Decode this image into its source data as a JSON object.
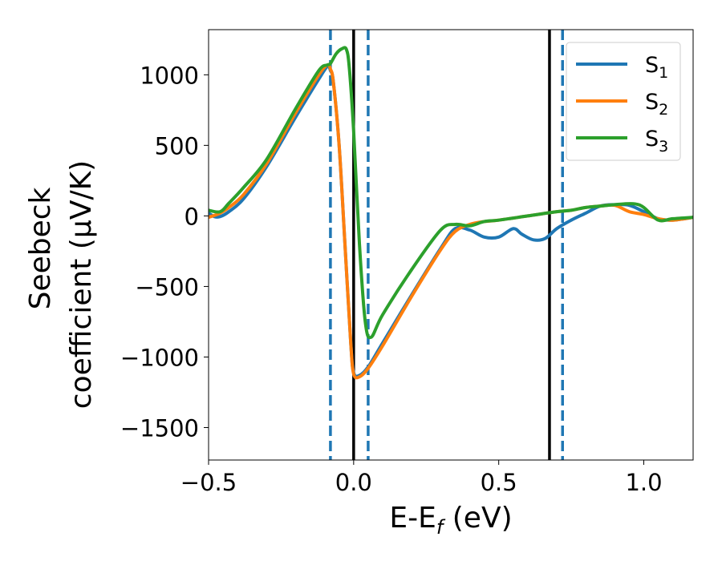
{
  "chart_data": {
    "type": "line",
    "xlabel": "E-E",
    "xlabel_sub": "f",
    "xlabel_unit": " (eV)",
    "ylabel_line1": "Seebeck",
    "ylabel_line2": "coefficient  (μV/K)",
    "xlim": [
      -0.5,
      1.17
    ],
    "ylim": [
      -1730,
      1320
    ],
    "xticks": [
      -0.5,
      0.0,
      0.5,
      1.0
    ],
    "xtick_labels": [
      "−0.5",
      "0.0",
      "0.5",
      "1.0"
    ],
    "yticks": [
      1000,
      500,
      0,
      -500,
      -1000,
      -1500
    ],
    "ytick_labels": [
      "1000",
      "500",
      "0",
      "−500",
      "−1000",
      "−1500"
    ],
    "legend_position": "upper-right",
    "vlines": [
      {
        "x": -0.08,
        "style": "dashed",
        "color": "#1f77b4"
      },
      {
        "x": 0.0,
        "style": "solid",
        "color": "#000000"
      },
      {
        "x": 0.05,
        "style": "dashed",
        "color": "#1f77b4"
      },
      {
        "x": 0.675,
        "style": "solid",
        "color": "#000000"
      },
      {
        "x": 0.72,
        "style": "dashed",
        "color": "#1f77b4"
      }
    ],
    "series": [
      {
        "name": "S",
        "sub": "1",
        "color": "#1f77b4",
        "x": [
          -0.5,
          -0.48,
          -0.46,
          -0.43,
          -0.38,
          -0.3,
          -0.2,
          -0.12,
          -0.09,
          -0.08,
          -0.07,
          -0.05,
          -0.03,
          -0.01,
          0.0,
          0.02,
          0.05,
          0.1,
          0.2,
          0.3,
          0.35,
          0.4,
          0.45,
          0.5,
          0.55,
          0.58,
          0.62,
          0.66,
          0.7,
          0.75,
          0.8,
          0.85,
          0.9,
          0.95,
          1.0,
          1.05,
          1.1,
          1.17
        ],
        "y": [
          20,
          -5,
          -5,
          30,
          120,
          350,
          700,
          970,
          1060,
          1030,
          950,
          500,
          -200,
          -900,
          -1110,
          -1130,
          -1070,
          -900,
          -560,
          -230,
          -90,
          -100,
          -150,
          -150,
          -90,
          -130,
          -170,
          -160,
          -90,
          -30,
          20,
          70,
          80,
          75,
          30,
          -20,
          -30,
          -10
        ]
      },
      {
        "name": "S",
        "sub": "2",
        "color": "#ff7f0e",
        "x": [
          -0.5,
          -0.46,
          -0.43,
          -0.38,
          -0.3,
          -0.2,
          -0.12,
          -0.09,
          -0.08,
          -0.07,
          -0.05,
          -0.03,
          -0.01,
          0.0,
          0.02,
          0.05,
          0.1,
          0.2,
          0.3,
          0.35,
          0.4,
          0.45,
          0.5,
          0.6,
          0.7,
          0.75,
          0.8,
          0.85,
          0.9,
          0.95,
          1.0,
          1.05,
          1.1,
          1.17
        ],
        "y": [
          -10,
          20,
          60,
          150,
          370,
          730,
          1000,
          1070,
          1040,
          950,
          500,
          -200,
          -900,
          -1120,
          -1140,
          -1080,
          -920,
          -570,
          -240,
          -110,
          -60,
          -40,
          -30,
          0,
          30,
          40,
          60,
          70,
          75,
          30,
          10,
          -20,
          -30,
          -10
        ]
      },
      {
        "name": "S",
        "sub": "3",
        "color": "#2ca02c",
        "x": [
          -0.5,
          -0.46,
          -0.43,
          -0.38,
          -0.3,
          -0.2,
          -0.12,
          -0.09,
          -0.08,
          -0.06,
          -0.04,
          -0.025,
          -0.015,
          0.0,
          0.02,
          0.04,
          0.06,
          0.1,
          0.2,
          0.3,
          0.35,
          0.4,
          0.45,
          0.5,
          0.6,
          0.7,
          0.75,
          0.8,
          0.85,
          0.9,
          0.93,
          0.97,
          1.0,
          1.05,
          1.1,
          1.17
        ],
        "y": [
          40,
          30,
          90,
          200,
          400,
          760,
          1030,
          1070,
          1080,
          1150,
          1185,
          1180,
          1050,
          600,
          -200,
          -750,
          -860,
          -700,
          -380,
          -100,
          -60,
          -70,
          -40,
          -30,
          0,
          30,
          40,
          60,
          70,
          80,
          85,
          85,
          60,
          -30,
          -20,
          -10
        ]
      }
    ]
  }
}
